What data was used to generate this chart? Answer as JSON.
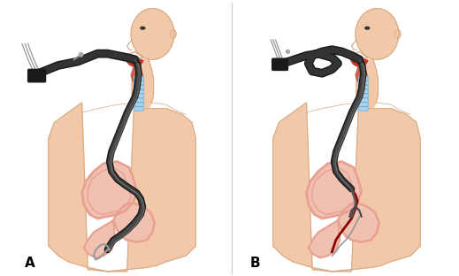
{
  "label_A": "A",
  "label_B": "B",
  "label_fontsize": 11,
  "label_fontweight": "bold",
  "bg_color": "#ffffff",
  "fig_width": 5.19,
  "fig_height": 3.12,
  "dpi": 100,
  "skin_color": "#f2c9a8",
  "skin_outline": "#d4a882",
  "dark_tube_color": "#1a1a1a",
  "red_color": "#c0392b",
  "light_red_color": "#e8a090",
  "pale_red": "#f0c0b0",
  "trachea_color": "#a8d4f0",
  "trachea_ring": "#6baed6",
  "wire_color": "#999999",
  "gray_color": "#555555",
  "scope_gray": "#444444",
  "inner_mouth": "#c0392b",
  "throat_color": "#d4857a"
}
